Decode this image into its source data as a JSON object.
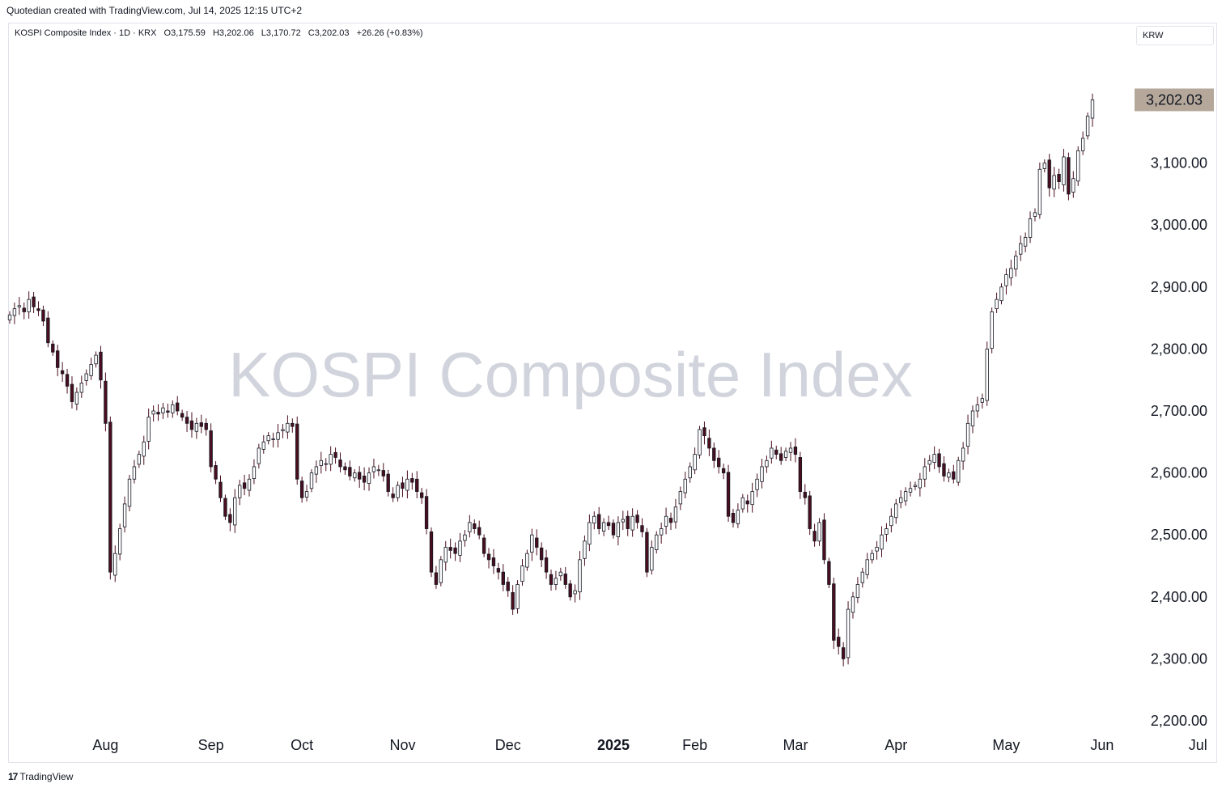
{
  "header": {
    "caption": "Quotedian created with TradingView.com, Jul 14, 2025 12:15 UTC+2"
  },
  "legend": {
    "symbol": "KOSPI Composite Index · 1D · KRX",
    "open": "O3,175.59",
    "high": "H3,202.06",
    "low": "L3,170.72",
    "close": "C3,202.03",
    "change": "+26.26 (+0.83%)"
  },
  "currency_button": "KRW",
  "watermark": "KOSPI Composite Index",
  "last_price_label": "3,202.03",
  "footer": {
    "brand": "TradingView",
    "logo_mark": "17"
  },
  "colors": {
    "candle_body": "#4a0e1e",
    "candle_outline": "#131722",
    "last_price_bg": "#b5a89b"
  },
  "chart_data": {
    "type": "candlestick",
    "title": "KOSPI Composite Index",
    "ylim": [
      2200,
      3300
    ],
    "y_ticks": [
      "3,100.00",
      "3,000.00",
      "2,900.00",
      "2,800.00",
      "2,700.00",
      "2,600.00",
      "2,500.00",
      "2,400.00",
      "2,300.00",
      "2,200.00"
    ],
    "y_tick_values": [
      3100,
      3000,
      2900,
      2800,
      2700,
      2600,
      2500,
      2400,
      2300,
      2200
    ],
    "x_ticks": [
      "Aug",
      "Sep",
      "Oct",
      "Nov",
      "Dec",
      "2025",
      "Feb",
      "Mar",
      "Apr",
      "May",
      "Jun",
      "Jul"
    ],
    "x_tick_index": [
      20,
      42,
      61,
      82,
      104,
      126,
      143,
      164,
      185,
      208,
      228,
      248
    ],
    "grid": false,
    "last_close": 3202.03,
    "closes": [
      2855,
      2865,
      2870,
      2860,
      2880,
      2868,
      2862,
      2845,
      2810,
      2795,
      2770,
      2760,
      2740,
      2715,
      2730,
      2745,
      2760,
      2775,
      2790,
      2750,
      2680,
      2440,
      2470,
      2510,
      2550,
      2590,
      2610,
      2630,
      2650,
      2690,
      2700,
      2695,
      2705,
      2698,
      2710,
      2700,
      2690,
      2680,
      2670,
      2680,
      2675,
      2670,
      2610,
      2590,
      2560,
      2530,
      2520,
      2560,
      2580,
      2575,
      2590,
      2610,
      2640,
      2650,
      2660,
      2655,
      2665,
      2670,
      2680,
      2675,
      2590,
      2560,
      2570,
      2600,
      2610,
      2620,
      2615,
      2630,
      2625,
      2610,
      2605,
      2595,
      2600,
      2590,
      2585,
      2600,
      2610,
      2605,
      2595,
      2570,
      2560,
      2580,
      2575,
      2590,
      2585,
      2570,
      2560,
      2510,
      2440,
      2420,
      2460,
      2480,
      2475,
      2470,
      2490,
      2500,
      2520,
      2510,
      2500,
      2470,
      2460,
      2450,
      2440,
      2420,
      2410,
      2380,
      2420,
      2450,
      2470,
      2500,
      2480,
      2460,
      2440,
      2420,
      2430,
      2440,
      2420,
      2400,
      2410,
      2460,
      2490,
      2520,
      2530,
      2510,
      2520,
      2515,
      2500,
      2520,
      2525,
      2510,
      2530,
      2520,
      2505,
      2440,
      2480,
      2500,
      2510,
      2530,
      2520,
      2545,
      2570,
      2590,
      2610,
      2630,
      2670,
      2660,
      2640,
      2620,
      2610,
      2600,
      2530,
      2520,
      2540,
      2560,
      2550,
      2570,
      2590,
      2610,
      2620,
      2640,
      2630,
      2620,
      2635,
      2640,
      2630,
      2570,
      2560,
      2510,
      2490,
      2520,
      2460,
      2420,
      2330,
      2320,
      2300,
      2380,
      2400,
      2420,
      2440,
      2460,
      2470,
      2480,
      2500,
      2510,
      2530,
      2550,
      2560,
      2570,
      2575,
      2580,
      2590,
      2610,
      2620,
      2630,
      2610,
      2595,
      2600,
      2590,
      2620,
      2640,
      2680,
      2700,
      2710,
      2720,
      2800,
      2860,
      2880,
      2900,
      2920,
      2930,
      2950,
      2970,
      2980,
      3010,
      3020,
      3090,
      3100,
      3060,
      3080,
      3070,
      3110,
      3050,
      3075,
      3120,
      3140,
      3175.59,
      3202.03
    ]
  }
}
